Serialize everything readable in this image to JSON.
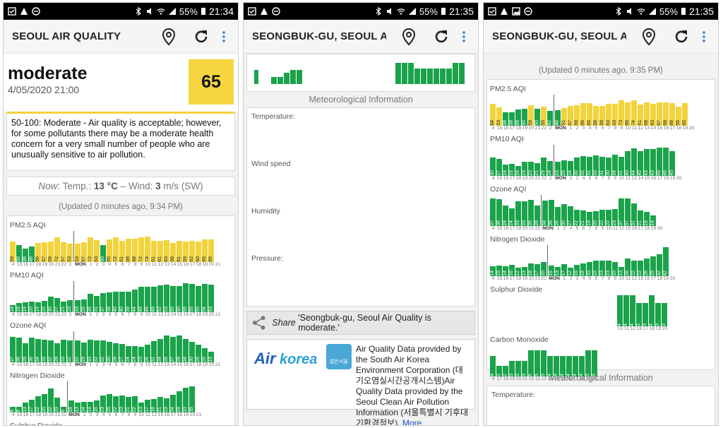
{
  "colors": {
    "green": "#1aa34a",
    "yellow": "#f2d33c",
    "status_bg": "#000000"
  },
  "screens": [
    {
      "status": {
        "battery": "55%",
        "time": "21:34"
      },
      "title": "SEOUL AIR QUALITY",
      "level": "moderate",
      "date": "4/05/2020 21:00",
      "aqi": "65",
      "description": "50-100: Moderate - Air quality is acceptable; however, for some pollutants there may be a moderate health concern for a very small number of people who are unusually sensitive to air pollution.",
      "now": {
        "prefix": "Now",
        "temp_label": ": Temp.: ",
        "temp": "13 °C",
        "wind_label": " – Wind: ",
        "wind": "3",
        "wind_unit": " m/s (SW)"
      },
      "updated": "(Updated 0 minutes ago, 9:34 PM)"
    },
    {
      "status": {
        "battery": "55%",
        "time": "21:35"
      },
      "title": "SEONGBUK-GU, SEOUL A...",
      "met_title": "Meteorological Information",
      "met_labels": [
        "Temperature:",
        "Wind speed",
        "Humidity",
        "Pressure:"
      ],
      "share_label": "Share",
      "share_text": "'Seongbuk-gu, Seoul Air Quality is moderate.'",
      "credit_text_1": "Air Quality Data provided by the South Air Korea Environment Corporation (대기오염실시간공개시스템)Air Quality Data provided by the Seoul Clean Air Pollution Information (서울특별시 기후대기환경정보). ",
      "credit_link": "More information",
      "credit_tail": "...",
      "logo_text": "Air korea",
      "seoul_logo_text": "맑은서울"
    },
    {
      "status": {
        "battery": "55%",
        "time": "21:35"
      },
      "title": "SEONGBUK-GU, SEOUL A...",
      "updated": "(Updated 0 minutes ago, 9:35 PM)",
      "met_title": "Meteorological Information",
      "met_label": "Temperature:"
    }
  ],
  "chart_labels": {
    "pm25": "PM2.5 AQI",
    "pm10": "PM10 AQI",
    "ozone": "Ozone AQI",
    "no2": "Nitrogen Dioxide",
    "so2": "Sulphur Dioxide",
    "co": "Carbon Monoxide"
  },
  "chart_data": [
    {
      "type": "bar",
      "title": "PM2.5 AQI",
      "categories": [
        "4",
        "15",
        "16",
        "17",
        "18",
        "19",
        "20",
        "21",
        "22",
        "2",
        "MON",
        "1",
        "2",
        "3",
        "4",
        "5",
        "6",
        "7",
        "8",
        "9",
        "10",
        "11",
        "12",
        "13",
        "14",
        "15",
        "16",
        "17",
        "18",
        "19",
        "20",
        "21"
      ],
      "values": [
        59,
        50,
        38,
        46,
        56,
        57,
        59,
        72,
        57,
        53,
        53,
        57,
        72,
        63,
        50,
        65,
        72,
        61,
        68,
        68,
        72,
        74,
        61,
        61,
        63,
        56,
        61,
        59,
        62,
        60,
        65,
        65
      ]
    },
    {
      "type": "bar",
      "title": "PM10 AQI",
      "categories": [
        "4",
        "15",
        "16",
        "17",
        "18",
        "19",
        "20",
        "21",
        "22",
        "2",
        "MON",
        "1",
        "2",
        "3",
        "4",
        "5",
        "6",
        "7",
        "8",
        "9",
        "10",
        "11",
        "12",
        "13",
        "14",
        "15",
        "16",
        "17",
        "18",
        "19",
        "20",
        "21"
      ],
      "values": [
        14,
        18,
        19,
        20,
        19,
        22,
        30,
        27,
        21,
        23,
        23,
        25,
        35,
        31,
        37,
        38,
        40,
        40,
        39,
        44,
        49,
        49,
        49,
        52,
        53,
        50,
        50,
        56,
        55,
        50,
        54,
        53
      ]
    },
    {
      "type": "bar",
      "title": "Ozone AQI",
      "categories": [
        "4",
        "15",
        "16",
        "17",
        "18",
        "19",
        "20",
        "21",
        "22",
        "2",
        "MON",
        "1",
        "2",
        "3",
        "4",
        "5",
        "6",
        "7",
        "8",
        "9",
        "10",
        "11",
        "12",
        "13",
        "14",
        "15",
        "16",
        "17",
        "18",
        "19",
        "20",
        "21"
      ],
      "values": [
        37,
        36,
        28,
        36,
        34,
        33,
        32,
        28,
        33,
        32,
        32,
        29,
        33,
        32,
        32,
        30,
        28,
        27,
        24,
        24,
        23,
        26,
        31,
        34,
        39,
        37,
        39,
        34,
        30,
        26,
        20,
        15
      ]
    },
    {
      "type": "bar",
      "title": "Nitrogen Dioxide",
      "categories": [
        "4",
        "15",
        "16",
        "17",
        "18",
        "19",
        "20",
        "21",
        "22",
        "MON",
        "1",
        "2",
        "3",
        "4",
        "5",
        "6",
        "7",
        "8",
        "9",
        "10",
        "11",
        "12",
        "15",
        "16",
        "17",
        "18",
        "19",
        "20",
        "21"
      ],
      "values": [
        8,
        8,
        13,
        17,
        22,
        25,
        32,
        20,
        8,
        16,
        13,
        14,
        14,
        16,
        23,
        25,
        22,
        23,
        21,
        22,
        13,
        17,
        18,
        21,
        19,
        24,
        29,
        33,
        35
      ]
    },
    {
      "type": "bar",
      "title": "PM2.5 AQI",
      "categories": [
        "4",
        "15",
        "16",
        "17",
        "18",
        "19",
        "20",
        "21",
        "22",
        "2",
        "MON",
        "1",
        "2",
        "3",
        "4",
        "5",
        "6",
        "7",
        "8",
        "9",
        "10",
        "11",
        "12",
        "13",
        "14",
        "15",
        "16",
        "17",
        "18",
        "19",
        "20"
      ],
      "values": [
        64,
        53,
        38,
        38,
        48,
        50,
        59,
        50,
        55,
        42,
        46,
        51,
        57,
        59,
        66,
        65,
        58,
        58,
        63,
        63,
        73,
        68,
        74,
        61,
        68,
        63,
        67,
        68,
        66,
        55,
        65
      ]
    },
    {
      "type": "bar",
      "title": "PM10 AQI",
      "categories": [
        "4",
        "15",
        "16",
        "17",
        "18",
        "19",
        "20",
        "21",
        "22",
        "2",
        "MON",
        "1",
        "2",
        "4",
        "5",
        "6",
        "7",
        "8",
        "9",
        "10",
        "11",
        "12",
        "14",
        "15",
        "16",
        "17",
        "18",
        "19",
        "20"
      ],
      "values": [
        30,
        27,
        18,
        19,
        16,
        23,
        23,
        21,
        29,
        24,
        23,
        25,
        24,
        30,
        32,
        31,
        33,
        31,
        30,
        34,
        31,
        40,
        44,
        40,
        43,
        43,
        45,
        46,
        40
      ]
    },
    {
      "type": "bar",
      "title": "Ozone AQI",
      "categories": [
        "4",
        "15",
        "16",
        "17",
        "19",
        "20",
        "21",
        "22",
        "MON",
        "1",
        "2",
        "4",
        "5",
        "6",
        "7",
        "8",
        "9",
        "10",
        "11",
        "12",
        "15",
        "16",
        "17",
        "18",
        "19",
        "20"
      ],
      "values": [
        37,
        36,
        28,
        24,
        33,
        33,
        35,
        28,
        34,
        35,
        26,
        30,
        27,
        22,
        21,
        19,
        20,
        22,
        22,
        23,
        37,
        37,
        31,
        21,
        19,
        14
      ]
    },
    {
      "type": "bar",
      "title": "Nitrogen Dioxide",
      "categories": [
        "4",
        "15",
        "16",
        "17",
        "18",
        "19",
        "20",
        "21",
        "22",
        "MON",
        "1",
        "2",
        "3",
        "4",
        "5",
        "6",
        "7",
        "8",
        "9",
        "10",
        "11",
        "12",
        "15",
        "16",
        "17",
        "18",
        "19",
        "20"
      ],
      "values": [
        14,
        15,
        14,
        16,
        12,
        13,
        18,
        17,
        20,
        15,
        13,
        17,
        12,
        16,
        18,
        20,
        22,
        23,
        23,
        20,
        13,
        26,
        22,
        22,
        26,
        29,
        32,
        42
      ]
    },
    {
      "type": "bar",
      "title": "Sulphur Dioxide",
      "categories": [
        "10",
        "11",
        "12",
        "16",
        "17",
        "18",
        "19",
        "20"
      ],
      "values": [
        4,
        4,
        4,
        3,
        3,
        4,
        3,
        3
      ]
    },
    {
      "type": "bar",
      "title": "Carbon Monoxide",
      "categories": [
        "4",
        "17",
        "18",
        "19",
        "20",
        "21",
        "10",
        "11",
        "12",
        "13",
        "14",
        "15",
        "16",
        "17",
        "18",
        "19",
        "20"
      ],
      "values": [
        4,
        2,
        2,
        3,
        3,
        3,
        5,
        5,
        5,
        4,
        4,
        4,
        4,
        4,
        4,
        5,
        5
      ]
    }
  ]
}
